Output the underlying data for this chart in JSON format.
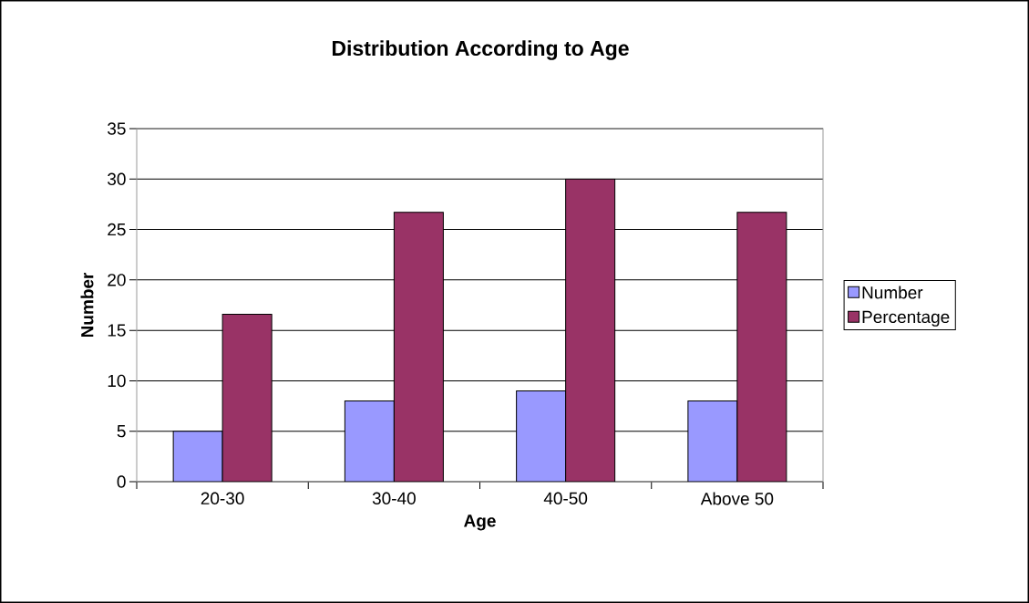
{
  "chart_data": {
    "type": "bar",
    "title": "Distribution According to Age",
    "xlabel": "Age",
    "ylabel": "Number",
    "categories": [
      "20-30",
      "30-40",
      "40-50",
      "Above 50"
    ],
    "series": [
      {
        "name": "Number",
        "color": "#9999ff",
        "values": [
          5,
          8,
          9,
          8
        ]
      },
      {
        "name": "Percentage",
        "color": "#993366",
        "values": [
          16.6,
          26.7,
          30,
          26.7
        ]
      }
    ],
    "ylim": [
      0,
      35
    ],
    "yticks": [
      0,
      5,
      10,
      15,
      20,
      25,
      30,
      35
    ],
    "grid": "y",
    "legend": "right"
  }
}
